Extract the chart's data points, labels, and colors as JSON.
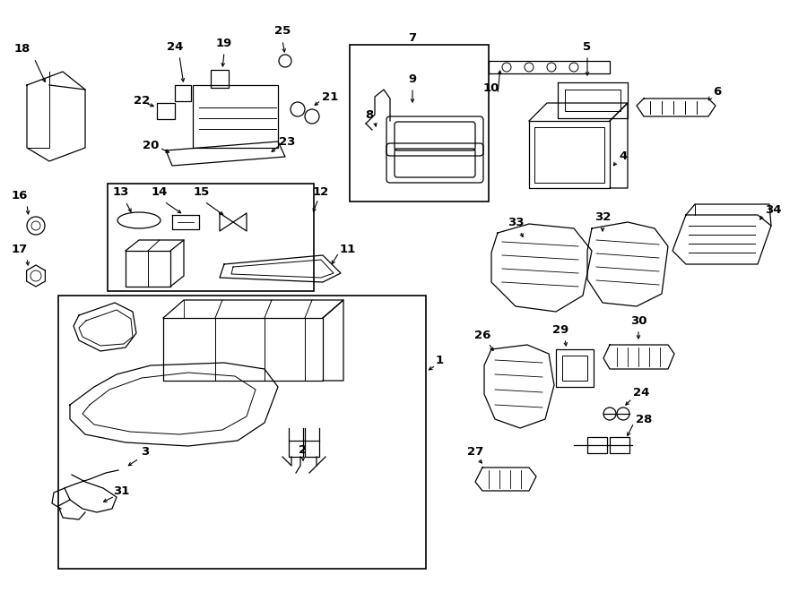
{
  "bg_color": "#ffffff",
  "line_color": "#000000",
  "fig_width": 9.0,
  "fig_height": 6.61,
  "dpi": 100,
  "lw": 0.9,
  "fs": 9.5,
  "fw": "bold"
}
